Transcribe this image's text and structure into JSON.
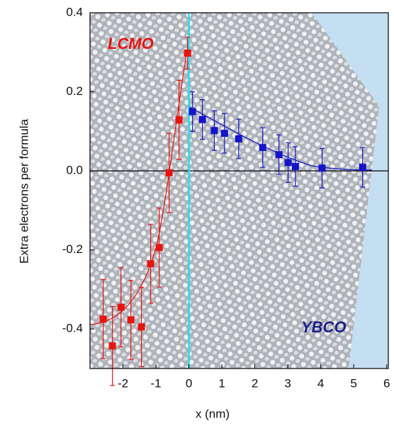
{
  "chart_data": {
    "type": "scatter",
    "xlabel": "x (nm)",
    "ylabel": "Extra electrons per formula",
    "xlim": [
      -3,
      6.05
    ],
    "ylim": [
      -0.5,
      0.4
    ],
    "xticks": [
      -2,
      -1,
      0,
      1,
      2,
      3,
      4,
      5,
      6
    ],
    "yticks": [
      0.4,
      0.2,
      {
        "value": 0,
        "label": "0.0"
      },
      -0.2,
      -0.4
    ],
    "series": [
      {
        "name": "LCMO",
        "color": "#e8140f",
        "x": [
          -2.6,
          -2.32,
          -2.06,
          -1.76,
          -1.44,
          -1.16,
          -0.9,
          -0.6,
          -0.3,
          -0.04
        ],
        "values": [
          -0.375,
          -0.443,
          -0.345,
          -0.377,
          -0.395,
          -0.235,
          -0.194,
          -0.005,
          0.129,
          0.298
        ],
        "errors": [
          0.1,
          0.1,
          0.1,
          0.1,
          0.1,
          0.1,
          0.1,
          0.1,
          0.1,
          0.04
        ]
      },
      {
        "name": "YBCO",
        "color": "#1414c8",
        "x": [
          0.11,
          0.41,
          0.77,
          1.08,
          1.51,
          2.24,
          2.73,
          3.01,
          3.23,
          4.04,
          5.27
        ],
        "values": [
          0.15,
          0.13,
          0.102,
          0.095,
          0.081,
          0.059,
          0.041,
          0.021,
          0.011,
          0.007,
          0.009
        ],
        "errors": [
          0.05,
          0.05,
          0.05,
          0.05,
          0.05,
          0.05,
          0.05,
          0.05,
          0.05,
          0.05,
          0.05
        ]
      }
    ]
  }
}
